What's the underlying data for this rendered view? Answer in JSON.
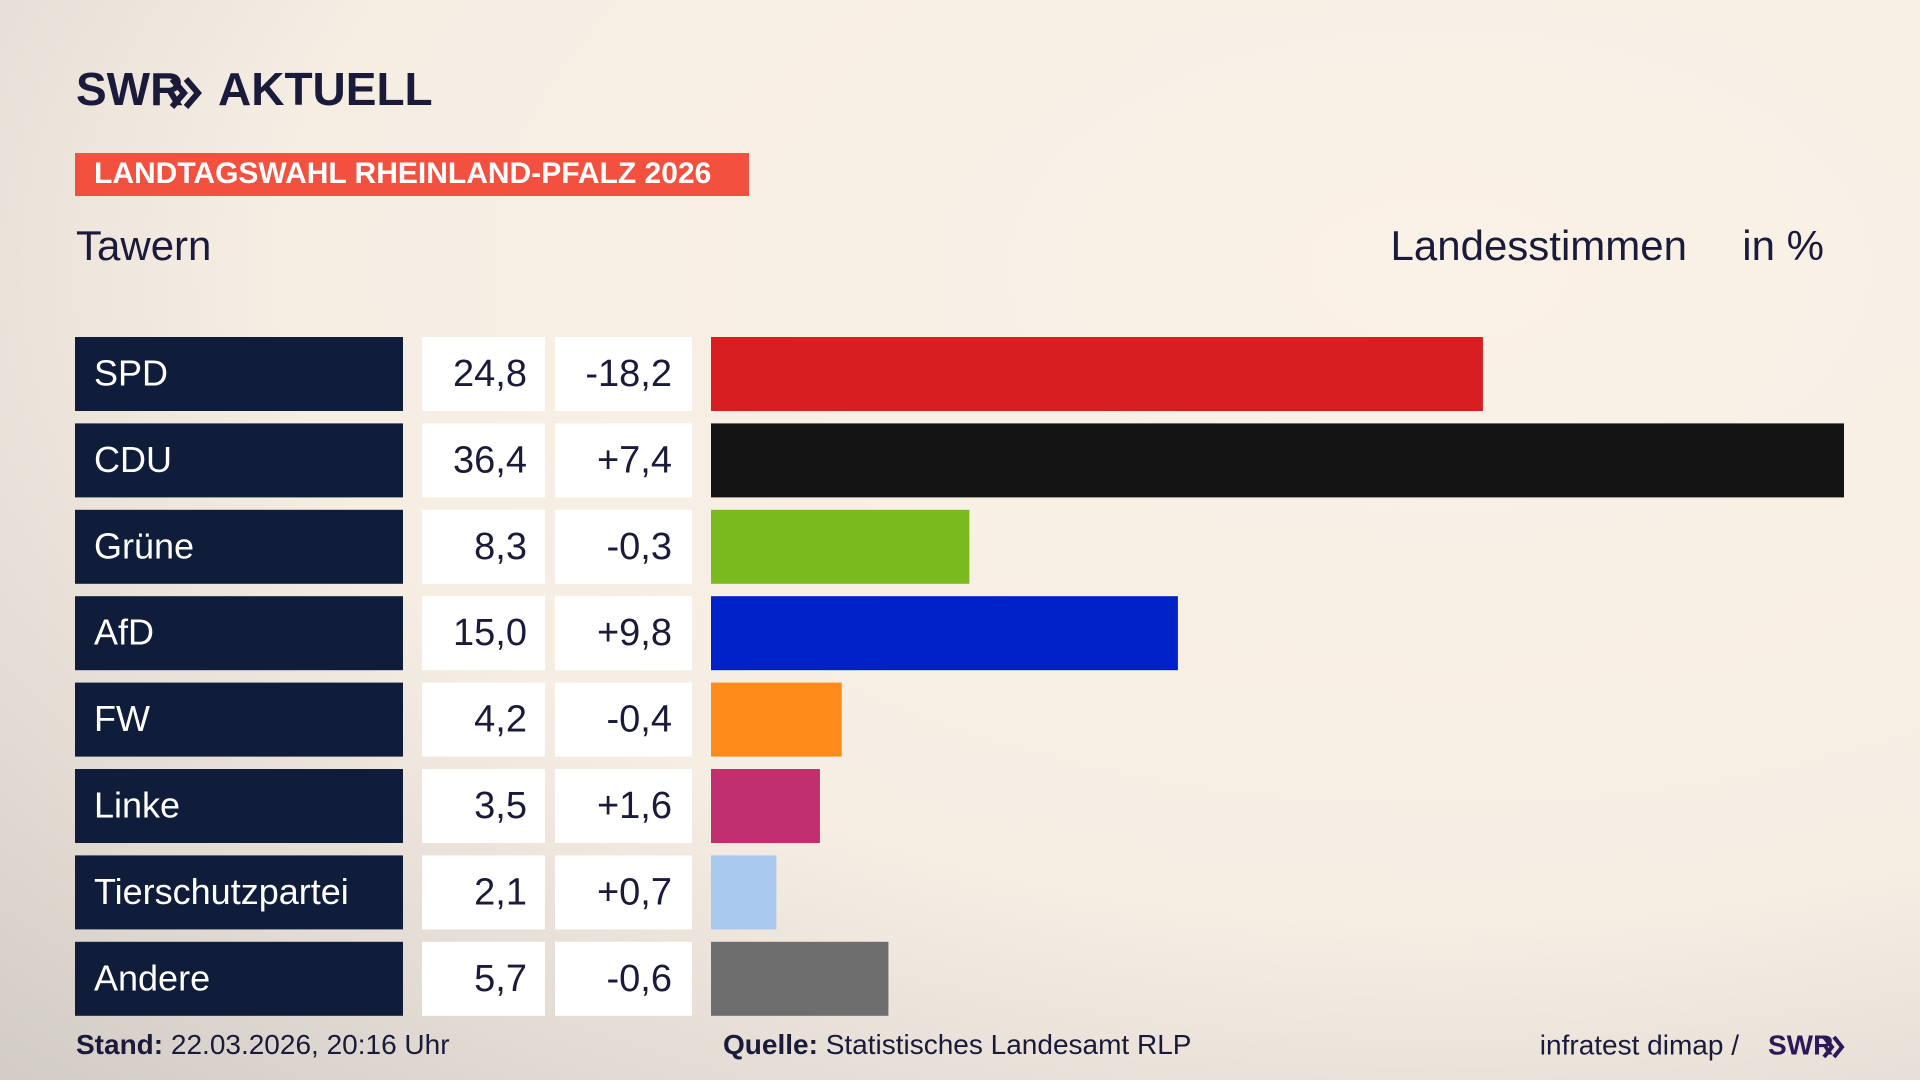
{
  "chart_data": {
    "type": "bar",
    "brand": "SWR",
    "brand_suffix": "AKTUELL",
    "title": "LANDTAGSWAHL RHEINLAND-PFALZ 2026",
    "region": "Tawern",
    "measure": "Landesstimmen",
    "unit": "in %",
    "categories": [
      "SPD",
      "CDU",
      "Grüne",
      "AfD",
      "FW",
      "Linke",
      "Tierschutzpartei",
      "Andere"
    ],
    "values": [
      24.8,
      36.4,
      8.3,
      15.0,
      4.2,
      3.5,
      2.1,
      5.7
    ],
    "value_labels": [
      "24,8",
      "36,4",
      "8,3",
      "15,0",
      "4,2",
      "3,5",
      "2,1",
      "5,7"
    ],
    "changes": [
      -18.2,
      7.4,
      -0.3,
      9.8,
      -0.4,
      1.6,
      0.7,
      -0.6
    ],
    "change_labels": [
      "-18,2",
      "+7,4",
      "-0,3",
      "+9,8",
      "-0,4",
      "+1,6",
      "+0,7",
      "-0,6"
    ],
    "colors": [
      "#d91e22",
      "#141414",
      "#7aba1e",
      "#0020c8",
      "#ff8c1a",
      "#c0306f",
      "#a9c8ee",
      "#6e6e6e"
    ],
    "footer": {
      "stand_label": "Stand:",
      "stand": "22.03.2026, 20:16 Uhr",
      "source_label": "Quelle:",
      "source": "Statistisches Landesamt RLP",
      "credit": "infratest dimap /",
      "credit_brand": "SWR"
    }
  }
}
